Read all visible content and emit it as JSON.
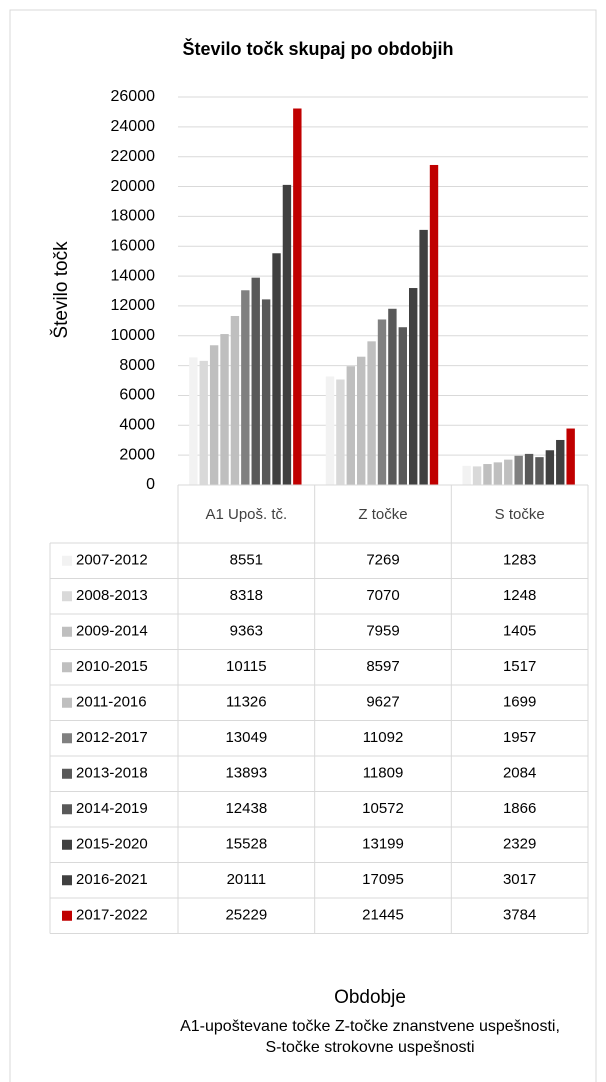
{
  "chart_data": {
    "type": "bar",
    "title": "Število točk skupaj po obdobjih",
    "y_label": "Število točk",
    "x_label": "Obdobje",
    "notes": [
      "A1-upoštevane točke  Z-točke znanstvene uspešnosti,",
      "S-točke strokovne uspešnosti"
    ],
    "categories": [
      "A1 Upoš. tč.",
      "Z točke",
      "S točke"
    ],
    "ylim": [
      0,
      26000
    ],
    "yticks": [
      0,
      2000,
      4000,
      6000,
      8000,
      10000,
      12000,
      14000,
      16000,
      18000,
      20000,
      22000,
      24000,
      26000
    ],
    "grid": true,
    "series": [
      {
        "name": "2007-2012",
        "color": "#f2f2f2",
        "values": [
          8551,
          7269,
          1283
        ]
      },
      {
        "name": "2008-2013",
        "color": "#d9d9d9",
        "values": [
          8318,
          7070,
          1248
        ]
      },
      {
        "name": "2009-2014",
        "color": "#bfbfbf",
        "values": [
          9363,
          7959,
          1405
        ]
      },
      {
        "name": "2010-2015",
        "color": "#bfbfbf",
        "values": [
          10115,
          8597,
          1517
        ]
      },
      {
        "name": "2011-2016",
        "color": "#bfbfbf",
        "values": [
          11326,
          9627,
          1699
        ]
      },
      {
        "name": "2012-2017",
        "color": "#808080",
        "values": [
          13049,
          11092,
          1957
        ]
      },
      {
        "name": "2013-2018",
        "color": "#595959",
        "values": [
          13893,
          11809,
          2084
        ]
      },
      {
        "name": "2014-2019",
        "color": "#595959",
        "values": [
          12438,
          10572,
          1866
        ]
      },
      {
        "name": "2015-2020",
        "color": "#404040",
        "values": [
          15528,
          13199,
          2329
        ]
      },
      {
        "name": "2016-2021",
        "color": "#404040",
        "values": [
          20111,
          17095,
          3017
        ]
      },
      {
        "name": "2017-2022",
        "color": "#c00000",
        "values": [
          25229,
          21445,
          3784
        ]
      }
    ]
  }
}
